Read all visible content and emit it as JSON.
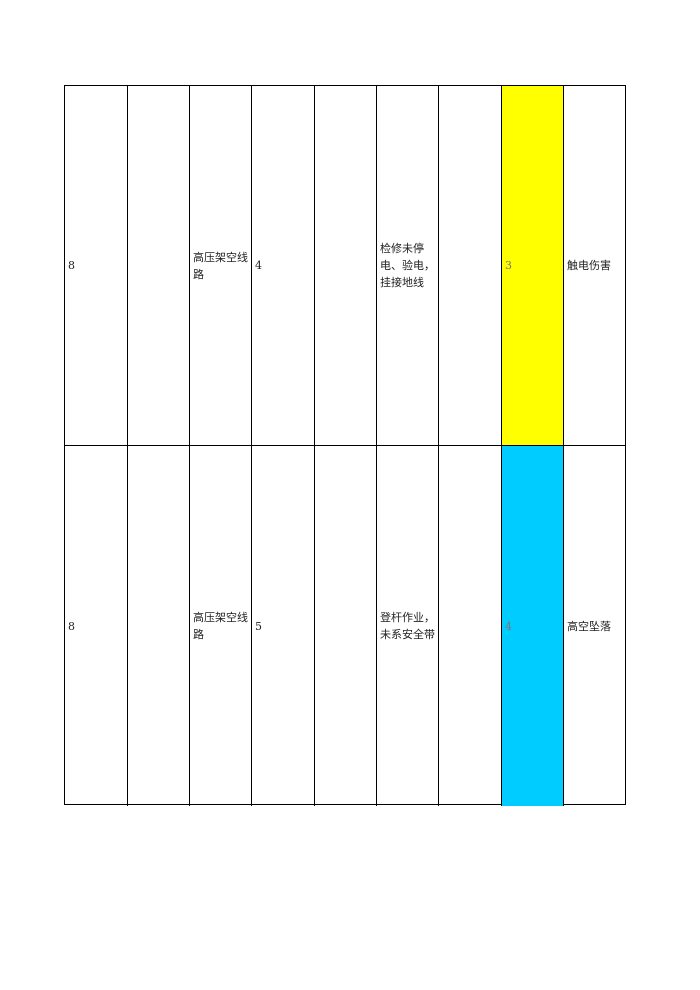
{
  "table": {
    "rows": [
      {
        "cells": [
          "8",
          "",
          "高压架空线路",
          "4",
          "",
          "检修未停电、验电，挂接地线",
          "",
          "3",
          "触电伤害"
        ],
        "level_color": "#ffff00"
      },
      {
        "cells": [
          "8",
          "",
          "高压架空线路",
          "5",
          "",
          "登杆作业，未系安全带",
          "",
          "4",
          "高空坠落"
        ],
        "level_color": "#00ccff"
      }
    ]
  }
}
